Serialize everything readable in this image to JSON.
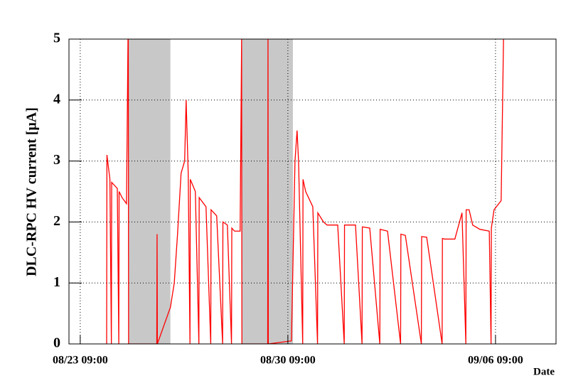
{
  "chart_data": {
    "type": "line",
    "y_label": "DLC-RPC HV current [μA]",
    "x_label": "Date",
    "x": [
      0.89,
      0.9,
      1.0,
      1.05,
      1.06,
      1.25,
      1.3,
      1.31,
      1.41,
      1.56,
      1.61,
      1.62,
      1.63,
      2.0,
      2.4,
      2.58,
      2.59,
      2.6,
      3.04,
      3.17,
      3.28,
      3.4,
      3.52,
      3.57,
      3.64,
      3.7,
      3.71,
      3.88,
      4.0,
      4.01,
      4.24,
      4.4,
      4.41,
      4.6,
      4.8,
      4.81,
      4.96,
      5.1,
      5.11,
      5.2,
      5.39,
      5.44,
      5.45,
      6.32,
      6.33,
      6.34,
      7.12,
      7.24,
      7.31,
      7.36,
      7.5,
      7.51,
      7.6,
      7.84,
      8.0,
      8.01,
      8.2,
      8.32,
      8.68,
      8.9,
      8.91,
      9.28,
      9.5,
      9.51,
      9.76,
      10.1,
      10.11,
      10.36,
      10.8,
      10.81,
      10.96,
      11.5,
      11.51,
      11.68,
      12.2,
      12.21,
      12.28,
      12.63,
      12.87,
      13.0,
      13.01,
      13.11,
      13.23,
      13.47,
      13.79,
      13.85,
      13.86,
      13.95,
      14.19,
      14.27
    ],
    "values": [
      0,
      3.1,
      2.7,
      0,
      2.65,
      2.55,
      0,
      2.5,
      2.4,
      2.3,
      5,
      5,
      0,
      0,
      0,
      0,
      1.8,
      0,
      0.6,
      1.0,
      1.8,
      2.8,
      3.0,
      4.0,
      2.8,
      0,
      2.7,
      2.5,
      0,
      2.4,
      2.25,
      0,
      2.2,
      2.1,
      0,
      2.0,
      1.95,
      0,
      1.9,
      1.85,
      1.85,
      5,
      0,
      0,
      5,
      0,
      0.05,
      3.0,
      3.5,
      3.0,
      0,
      2.7,
      2.5,
      2.25,
      0,
      2.15,
      2.0,
      1.95,
      1.95,
      0,
      1.95,
      1.95,
      0,
      1.92,
      1.9,
      0,
      1.88,
      1.85,
      0,
      1.8,
      1.78,
      0,
      1.76,
      1.75,
      0,
      1.73,
      1.72,
      1.72,
      2.15,
      0,
      2.2,
      2.2,
      1.95,
      1.88,
      1.85,
      0,
      1.9,
      2.2,
      2.35,
      5
    ],
    "color": "#ff0000",
    "shaded_ranges": [
      [
        1.63,
        3.04
      ],
      [
        5.44,
        7.17
      ]
    ],
    "shade_color": "#c8c8c8",
    "xlim": [
      -0.38,
      16.04
    ],
    "xticks": [
      {
        "value": 0,
        "label": "08/23 09:00"
      },
      {
        "value": 7,
        "label": "08/30 09:00"
      },
      {
        "value": 14,
        "label": "09/06 09:00"
      }
    ],
    "ylim": [
      0,
      5
    ],
    "yticks": [
      0,
      1,
      2,
      3,
      4,
      5
    ],
    "grid": true
  }
}
